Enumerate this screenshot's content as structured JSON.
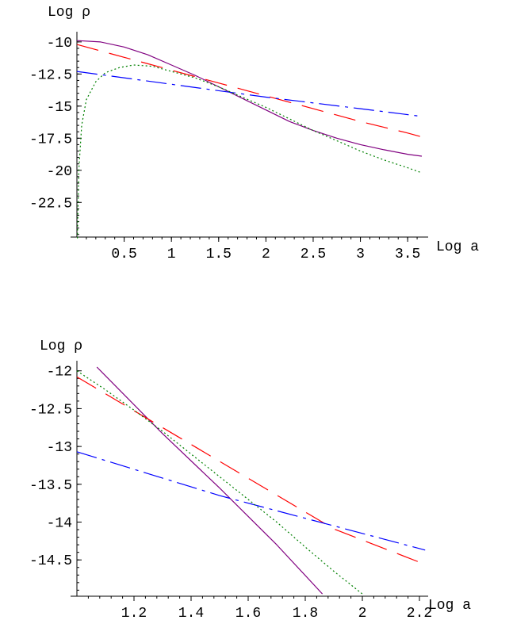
{
  "chart_data": [
    {
      "type": "line",
      "xlabel": "Log a",
      "ylabel": "Log ρ",
      "xlim": [
        0,
        3.7
      ],
      "ylim": [
        -25.3,
        -9.6
      ],
      "xticks": [
        "0.5",
        "1",
        "1.5",
        "2",
        "2.5",
        "3",
        "3.5"
      ],
      "yticks": [
        "-10",
        "-12.5",
        "-15",
        "-17.5",
        "-20",
        "-22.5"
      ],
      "grid": false,
      "series": [
        {
          "color": "#800080",
          "style": "solid",
          "x": [
            0,
            0.25,
            0.5,
            0.75,
            1.0,
            1.25,
            1.5,
            1.75,
            2.0,
            2.25,
            2.5,
            2.75,
            3.0,
            3.25,
            3.5,
            3.65
          ],
          "y": [
            -9.9,
            -10.0,
            -10.4,
            -11.0,
            -11.8,
            -12.6,
            -13.5,
            -14.4,
            -15.3,
            -16.2,
            -16.9,
            -17.5,
            -18.0,
            -18.4,
            -18.75,
            -18.9
          ]
        },
        {
          "color": "#ff0000",
          "style": "dashed",
          "x": [
            0,
            0.5,
            1.0,
            1.5,
            2.0,
            2.5,
            3.0,
            3.5,
            3.65
          ],
          "y": [
            -10.2,
            -11.2,
            -12.2,
            -13.2,
            -14.2,
            -15.2,
            -16.2,
            -17.1,
            -17.4
          ]
        },
        {
          "color": "#0000ff",
          "style": "dashdot",
          "x": [
            0,
            1.0,
            2.0,
            3.0,
            3.65
          ],
          "y": [
            -12.3,
            -13.3,
            -14.3,
            -15.2,
            -15.8
          ]
        },
        {
          "color": "#008000",
          "style": "dotted",
          "x": [
            0.005,
            0.02,
            0.05,
            0.1,
            0.2,
            0.3,
            0.45,
            0.6,
            0.8,
            1.0,
            1.25,
            1.5,
            1.75,
            2.0,
            2.25,
            2.5,
            2.75,
            3.0,
            3.25,
            3.5,
            3.65
          ],
          "y": [
            -25.3,
            -20.0,
            -16.5,
            -14.5,
            -13.1,
            -12.4,
            -12.0,
            -11.8,
            -11.9,
            -12.3,
            -12.8,
            -13.5,
            -14.3,
            -15.1,
            -16.0,
            -16.9,
            -17.7,
            -18.5,
            -19.2,
            -19.8,
            -20.2
          ]
        }
      ]
    },
    {
      "type": "line",
      "xlabel": "Log a",
      "ylabel": "Log ρ",
      "xlim": [
        1.0,
        2.22
      ],
      "ylim": [
        -14.95,
        -11.95
      ],
      "xticks": [
        "1.2",
        "1.4",
        "1.6",
        "1.8",
        "2",
        "2.2"
      ],
      "yticks": [
        "-12",
        "-12.5",
        "-13",
        "-13.5",
        "-14",
        "-14.5"
      ],
      "grid": false,
      "series": [
        {
          "color": "#800080",
          "style": "solid",
          "x": [
            1.07,
            1.3,
            1.5,
            1.7,
            1.86
          ],
          "y": [
            -11.95,
            -12.83,
            -13.55,
            -14.3,
            -14.95
          ]
        },
        {
          "color": "#ff0000",
          "style": "dashed",
          "x": [
            1.0,
            1.3,
            1.6,
            1.9,
            2.22
          ],
          "y": [
            -12.08,
            -12.75,
            -13.42,
            -14.09,
            -14.56
          ]
        },
        {
          "color": "#0000ff",
          "style": "dashdot",
          "x": [
            1.0,
            1.5,
            2.0,
            2.22
          ],
          "y": [
            -13.07,
            -13.65,
            -14.15,
            -14.37
          ]
        },
        {
          "color": "#008000",
          "style": "dotted",
          "x": [
            1.0,
            1.1,
            1.2,
            1.3,
            1.4,
            1.5,
            1.6,
            1.7,
            1.8,
            1.9,
            2.0
          ],
          "y": [
            -12.0,
            -12.25,
            -12.52,
            -12.8,
            -13.1,
            -13.4,
            -13.7,
            -14.0,
            -14.33,
            -14.65,
            -14.95
          ]
        }
      ]
    }
  ]
}
